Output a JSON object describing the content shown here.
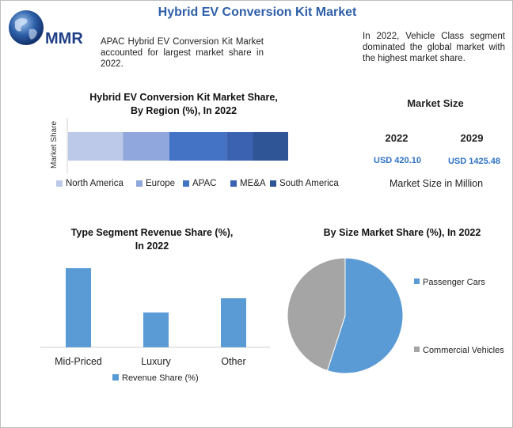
{
  "header": {
    "title": "Hybrid EV Conversion Kit Market",
    "logo_text": "MMR",
    "note_left": "APAC Hybrid EV Conversion Kit Market accounted for largest market share in 2022.",
    "note_right": "In 2022, Vehicle Class segment dominated the global market with the highest market share."
  },
  "market_size": {
    "title": "Market Size",
    "years": [
      "2022",
      "2029"
    ],
    "values": [
      "USD 420.10",
      "USD 1425.48"
    ],
    "unit_note": "Market Size in Million",
    "value_color": "#2e72c4"
  },
  "chart_data": [
    {
      "type": "bar",
      "orientation": "horizontal-stacked",
      "title": "Hybrid EV Conversion Kit Market Share, By Region (%), In 2022",
      "title_lines": [
        "Hybrid EV Conversion Kit Market Share,",
        "By Region (%), In 2022"
      ],
      "ylabel": "Market Share",
      "legend_position": "bottom",
      "series": [
        {
          "name": "North America",
          "value": 25,
          "color": "#bcc9e8"
        },
        {
          "name": "Europe",
          "value": 21,
          "color": "#8fa7dc"
        },
        {
          "name": "APAC",
          "value": 26,
          "color": "#4472c4"
        },
        {
          "name": "ME&A",
          "value": 12,
          "color": "#3a62b0"
        },
        {
          "name": "South America",
          "value": 16,
          "color": "#2f5597"
        }
      ]
    },
    {
      "type": "bar",
      "title": "Type Segment Revenue Share (%), In 2022",
      "title_lines": [
        "Type Segment Revenue Share (%),",
        "In 2022"
      ],
      "categories": [
        "Mid-Priced",
        "Luxury",
        "Other"
      ],
      "series": [
        {
          "name": "Revenue Share (%)",
          "values": [
            50,
            22,
            31
          ],
          "color": "#5b9bd5"
        }
      ],
      "ylim": [
        0,
        55
      ],
      "grid": false,
      "legend_position": "bottom"
    },
    {
      "type": "pie",
      "title": "By Size Market Share (%), In 2022",
      "slices": [
        {
          "name": "Passenger Cars",
          "value": 55,
          "color": "#5b9bd5"
        },
        {
          "name": "Commercial Vehicles",
          "value": 45,
          "color": "#a5a5a5"
        }
      ],
      "legend_position": "right"
    }
  ]
}
